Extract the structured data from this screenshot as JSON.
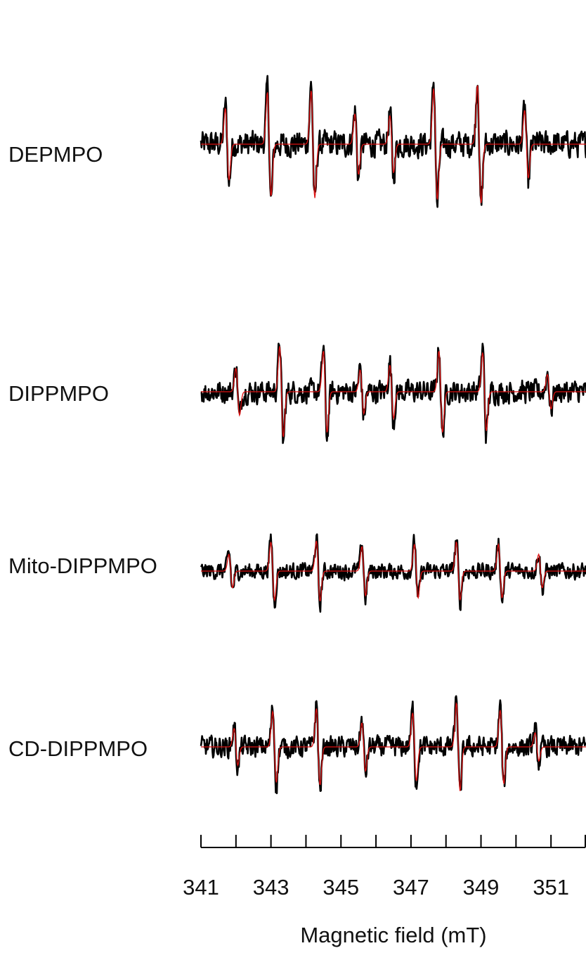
{
  "chart_data": {
    "type": "line",
    "title": "",
    "xlabel": "Magnetic field (mT)",
    "ylabel": "",
    "xlim": [
      341,
      352
    ],
    "x_ticks": [
      341,
      342,
      343,
      344,
      345,
      346,
      347,
      348,
      349,
      350,
      351,
      352
    ],
    "x_tick_labels": [
      "341",
      "343",
      "345",
      "347",
      "349",
      "351"
    ],
    "grid": false,
    "legend": "none",
    "colors": {
      "experimental": "#000000",
      "simulated": "#dd1111"
    },
    "panels": [
      {
        "name": "DEPMPO",
        "lines": [
          {
            "center": 341.75,
            "amp": 1.0
          },
          {
            "center": 342.95,
            "amp": 1.45
          },
          {
            "center": 344.2,
            "amp": 1.5
          },
          {
            "center": 345.45,
            "amp": 0.85
          },
          {
            "center": 346.45,
            "amp": 0.8
          },
          {
            "center": 347.7,
            "amp": 1.55
          },
          {
            "center": 348.95,
            "amp": 1.65
          },
          {
            "center": 350.3,
            "amp": 0.95
          }
        ]
      },
      {
        "name": "DIPPMPO",
        "lines": [
          {
            "center": 342.05,
            "amp": 0.75
          },
          {
            "center": 343.3,
            "amp": 1.45
          },
          {
            "center": 344.55,
            "amp": 1.3
          },
          {
            "center": 345.6,
            "amp": 0.7
          },
          {
            "center": 346.45,
            "amp": 0.85
          },
          {
            "center": 347.85,
            "amp": 1.3
          },
          {
            "center": 349.1,
            "amp": 1.25
          },
          {
            "center": 350.95,
            "amp": 0.55
          }
        ]
      },
      {
        "name": "Mito-DIPPMPO",
        "lines": [
          {
            "center": 341.85,
            "amp": 0.75
          },
          {
            "center": 343.05,
            "amp": 1.3
          },
          {
            "center": 344.35,
            "amp": 1.35
          },
          {
            "center": 345.65,
            "amp": 1.1
          },
          {
            "center": 347.15,
            "amp": 1.2
          },
          {
            "center": 348.35,
            "amp": 1.3
          },
          {
            "center": 349.55,
            "amp": 1.2
          },
          {
            "center": 350.7,
            "amp": 0.75
          }
        ]
      },
      {
        "name": "CD-DIPPMPO",
        "lines": [
          {
            "center": 342.0,
            "amp": 0.65
          },
          {
            "center": 343.1,
            "amp": 1.25
          },
          {
            "center": 344.35,
            "amp": 1.35
          },
          {
            "center": 345.65,
            "amp": 0.85
          },
          {
            "center": 347.1,
            "amp": 1.2
          },
          {
            "center": 348.35,
            "amp": 1.55
          },
          {
            "center": 349.6,
            "amp": 1.3
          },
          {
            "center": 350.6,
            "amp": 0.5
          }
        ]
      }
    ]
  }
}
